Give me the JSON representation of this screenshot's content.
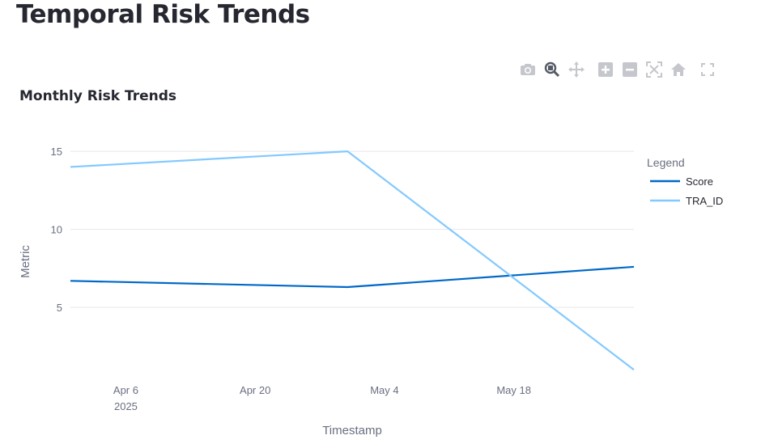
{
  "page": {
    "title": "Temporal Risk Trends"
  },
  "toolbar": {
    "icons": [
      "camera-icon",
      "zoom-icon",
      "pan-icon",
      "zoom-in-icon",
      "zoom-out-icon",
      "autoscale-icon",
      "reset-axes-icon",
      "fullscreen-icon"
    ]
  },
  "chart_data": {
    "type": "line",
    "title": "Monthly Risk Trends",
    "xlabel": "Timestamp",
    "ylabel": "Metric",
    "x": [
      "2025-03-31",
      "2025-04-30",
      "2025-05-31"
    ],
    "xlim": [
      "2025-03-31",
      "2025-05-31"
    ],
    "ylim": [
      0.6,
      16.2
    ],
    "yticks": [
      5,
      10,
      15
    ],
    "xticks": [
      {
        "date": "2025-04-06",
        "label": "Apr 6",
        "sublabel": "2025"
      },
      {
        "date": "2025-04-20",
        "label": "Apr 20",
        "sublabel": ""
      },
      {
        "date": "2025-05-04",
        "label": "May 4",
        "sublabel": ""
      },
      {
        "date": "2025-05-18",
        "label": "May 18",
        "sublabel": ""
      }
    ],
    "grid": true,
    "legend": {
      "title": "Legend",
      "position": "right"
    },
    "series": [
      {
        "name": "Score",
        "values": [
          6.7,
          6.3,
          7.6
        ],
        "color": "#0068c9"
      },
      {
        "name": "TRA_ID",
        "values": [
          14,
          15,
          1
        ],
        "color": "#83c9ff"
      }
    ]
  }
}
